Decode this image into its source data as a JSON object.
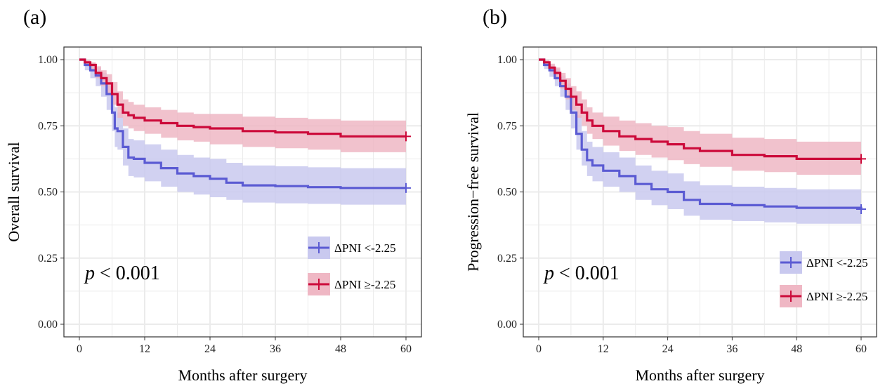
{
  "colors": {
    "low": "#5b5bd3",
    "high": "#cc0a3a",
    "low_band": "#c9c9ef",
    "high_band": "#efb7c4",
    "grid": "#ebebeb"
  },
  "chart_data": [
    {
      "type": "line",
      "panel_label": "(a)",
      "xlabel": "Months after surgery",
      "ylabel": "Overall survival",
      "xlim": [
        0,
        60
      ],
      "ylim": [
        0,
        1
      ],
      "x_ticks": [
        0,
        12,
        24,
        36,
        48,
        60
      ],
      "y_ticks": [
        0,
        0.25,
        0.5,
        0.75,
        1.0
      ],
      "x_tick_labels": [
        "0",
        "12",
        "24",
        "36",
        "48",
        "60"
      ],
      "y_tick_labels": [
        "0.00",
        "0.25",
        "0.50",
        "0.75",
        "1.00"
      ],
      "grid": true,
      "step": true,
      "annotation": {
        "italic": "p",
        "rest": " < 0.001"
      },
      "legend_position": "bottom-right",
      "series": [
        {
          "name": "ΔPNI <-2.25",
          "color_key": "low",
          "x": [
            0,
            1,
            2,
            3,
            4,
            5,
            6,
            6.5,
            7,
            8,
            9,
            10,
            12,
            15,
            18,
            21,
            24,
            27,
            30,
            36,
            42,
            48,
            60
          ],
          "y": [
            1.0,
            0.98,
            0.96,
            0.94,
            0.91,
            0.87,
            0.8,
            0.74,
            0.73,
            0.67,
            0.63,
            0.625,
            0.61,
            0.59,
            0.57,
            0.56,
            0.55,
            0.535,
            0.525,
            0.522,
            0.518,
            0.515,
            0.515
          ],
          "lower": [
            1.0,
            0.96,
            0.93,
            0.9,
            0.86,
            0.81,
            0.73,
            0.67,
            0.66,
            0.6,
            0.56,
            0.555,
            0.54,
            0.52,
            0.5,
            0.49,
            0.48,
            0.47,
            0.46,
            0.457,
            0.455,
            0.452,
            0.452
          ],
          "upper": [
            1.0,
            0.99,
            0.985,
            0.97,
            0.95,
            0.92,
            0.87,
            0.82,
            0.8,
            0.74,
            0.7,
            0.695,
            0.68,
            0.66,
            0.64,
            0.63,
            0.625,
            0.61,
            0.6,
            0.597,
            0.593,
            0.59,
            0.59
          ]
        },
        {
          "name": "ΔPNI ≥-2.25",
          "color_key": "high",
          "x": [
            0,
            1,
            2,
            3,
            4,
            5,
            6,
            7,
            8,
            9,
            10,
            12,
            15,
            18,
            21,
            24,
            30,
            36,
            42,
            48,
            60
          ],
          "y": [
            1.0,
            0.99,
            0.98,
            0.95,
            0.93,
            0.91,
            0.87,
            0.83,
            0.8,
            0.79,
            0.78,
            0.77,
            0.76,
            0.75,
            0.745,
            0.74,
            0.73,
            0.725,
            0.72,
            0.71,
            0.71
          ],
          "lower": [
            1.0,
            0.98,
            0.965,
            0.93,
            0.9,
            0.87,
            0.83,
            0.78,
            0.75,
            0.74,
            0.73,
            0.72,
            0.705,
            0.695,
            0.69,
            0.68,
            0.67,
            0.665,
            0.66,
            0.65,
            0.65
          ],
          "upper": [
            1.0,
            1.0,
            0.99,
            0.975,
            0.96,
            0.945,
            0.915,
            0.88,
            0.85,
            0.84,
            0.83,
            0.82,
            0.81,
            0.8,
            0.795,
            0.795,
            0.785,
            0.78,
            0.775,
            0.77,
            0.77
          ]
        }
      ]
    },
    {
      "type": "line",
      "panel_label": "(b)",
      "xlabel": "Months after surgery",
      "ylabel": "Progression−free survival",
      "xlim": [
        0,
        60
      ],
      "ylim": [
        0,
        1
      ],
      "x_ticks": [
        0,
        12,
        24,
        36,
        48,
        60
      ],
      "y_ticks": [
        0,
        0.25,
        0.5,
        0.75,
        1.0
      ],
      "x_tick_labels": [
        "0",
        "12",
        "24",
        "36",
        "48",
        "60"
      ],
      "y_tick_labels": [
        "0.00",
        "0.25",
        "0.50",
        "0.75",
        "1.00"
      ],
      "grid": true,
      "step": true,
      "annotation": {
        "italic": "p",
        "rest": " < 0.001"
      },
      "legend_position": "bottom-right",
      "series": [
        {
          "name": "ΔPNI <-2.25",
          "color_key": "low",
          "x": [
            0,
            1,
            2,
            3,
            4,
            5,
            6,
            7,
            8,
            9,
            10,
            12,
            15,
            18,
            21,
            24,
            27,
            30,
            36,
            42,
            48,
            60
          ],
          "y": [
            1.0,
            0.98,
            0.96,
            0.93,
            0.9,
            0.86,
            0.8,
            0.72,
            0.66,
            0.62,
            0.6,
            0.58,
            0.56,
            0.53,
            0.51,
            0.5,
            0.47,
            0.455,
            0.45,
            0.445,
            0.44,
            0.435
          ],
          "lower": [
            1.0,
            0.965,
            0.935,
            0.9,
            0.86,
            0.81,
            0.74,
            0.66,
            0.6,
            0.56,
            0.54,
            0.52,
            0.5,
            0.47,
            0.45,
            0.435,
            0.41,
            0.395,
            0.39,
            0.385,
            0.38,
            0.375
          ],
          "upper": [
            1.0,
            0.99,
            0.98,
            0.965,
            0.94,
            0.91,
            0.86,
            0.79,
            0.73,
            0.69,
            0.67,
            0.65,
            0.63,
            0.6,
            0.58,
            0.57,
            0.54,
            0.525,
            0.52,
            0.515,
            0.51,
            0.505
          ]
        },
        {
          "name": "ΔPNI ≥-2.25",
          "color_key": "high",
          "x": [
            0,
            1,
            2,
            3,
            4,
            5,
            6,
            7,
            8,
            9,
            10,
            12,
            15,
            18,
            21,
            24,
            27,
            30,
            36,
            42,
            48,
            60
          ],
          "y": [
            1.0,
            0.99,
            0.97,
            0.95,
            0.92,
            0.89,
            0.86,
            0.83,
            0.8,
            0.77,
            0.75,
            0.73,
            0.71,
            0.7,
            0.69,
            0.68,
            0.665,
            0.655,
            0.64,
            0.635,
            0.625,
            0.625
          ],
          "lower": [
            1.0,
            0.98,
            0.955,
            0.93,
            0.89,
            0.85,
            0.81,
            0.78,
            0.75,
            0.72,
            0.7,
            0.675,
            0.655,
            0.64,
            0.63,
            0.62,
            0.605,
            0.595,
            0.58,
            0.575,
            0.565,
            0.565
          ],
          "upper": [
            1.0,
            1.0,
            0.985,
            0.97,
            0.95,
            0.93,
            0.9,
            0.88,
            0.85,
            0.82,
            0.8,
            0.785,
            0.77,
            0.76,
            0.75,
            0.745,
            0.73,
            0.72,
            0.705,
            0.7,
            0.69,
            0.69
          ]
        }
      ]
    }
  ]
}
